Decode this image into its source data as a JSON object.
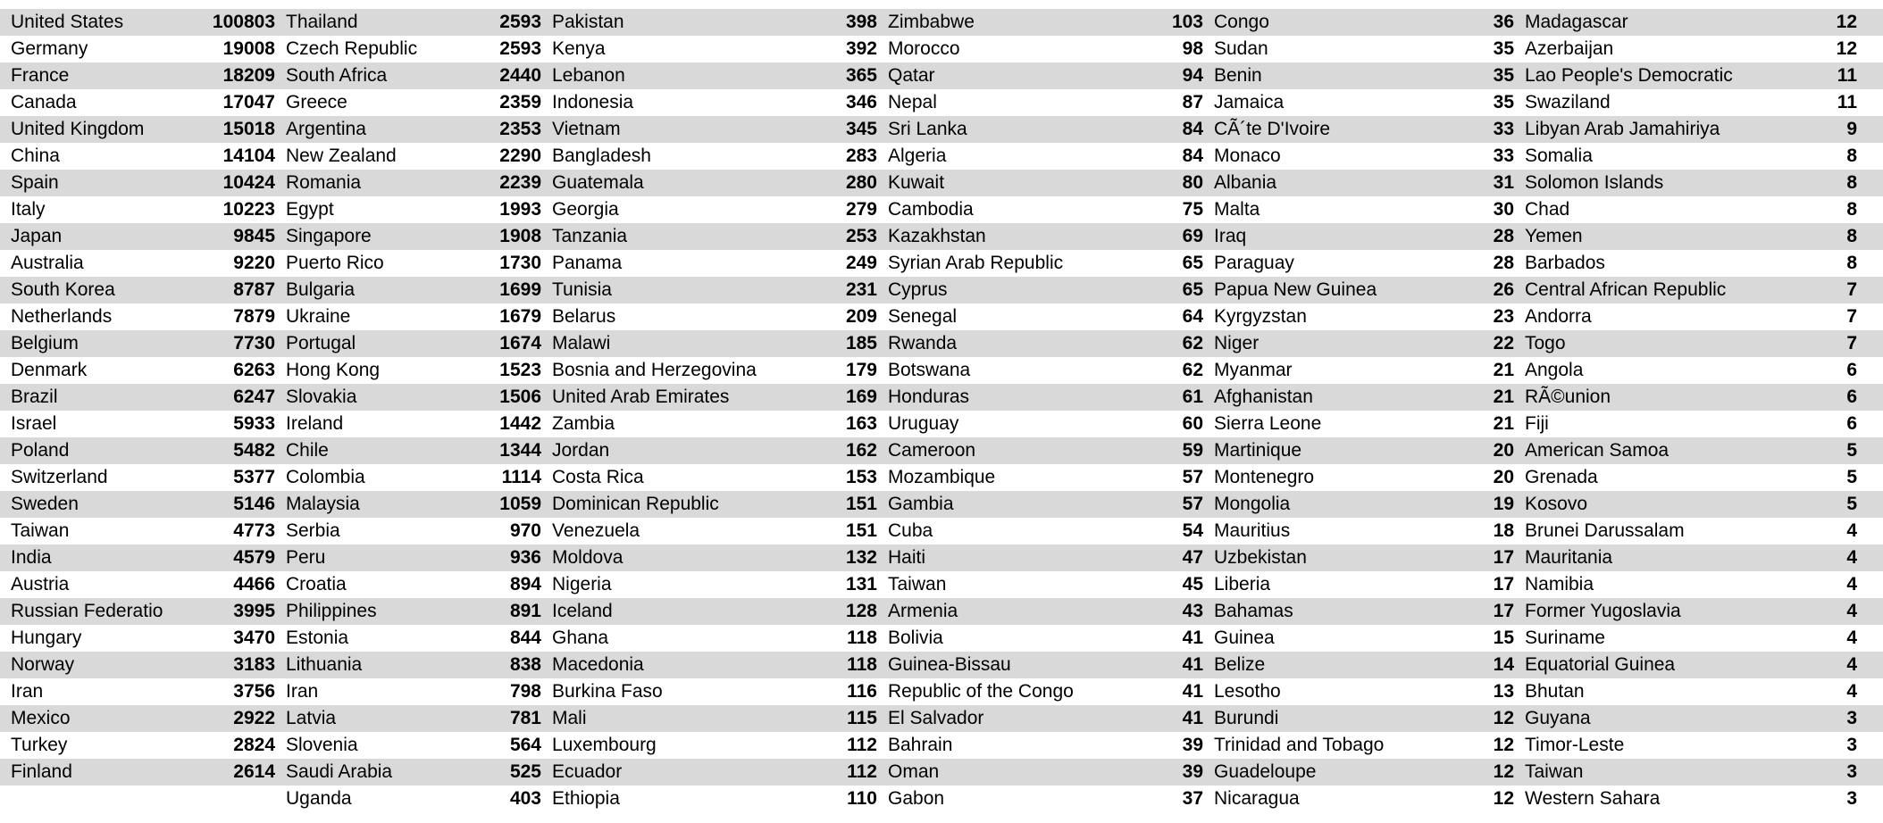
{
  "table": {
    "columns": [
      {
        "rows": [
          [
            "United States",
            "100803"
          ],
          [
            "Germany",
            "19008"
          ],
          [
            "France",
            "18209"
          ],
          [
            "Canada",
            "17047"
          ],
          [
            "United Kingdom",
            "15018"
          ],
          [
            "China",
            "14104"
          ],
          [
            "Spain",
            "10424"
          ],
          [
            "Italy",
            "10223"
          ],
          [
            "Japan",
            "9845"
          ],
          [
            "Australia",
            "9220"
          ],
          [
            "South Korea",
            "8787"
          ],
          [
            "Netherlands",
            "7879"
          ],
          [
            "Belgium",
            "7730"
          ],
          [
            "Denmark",
            "6263"
          ],
          [
            "Brazil",
            "6247"
          ],
          [
            "Israel",
            "5933"
          ],
          [
            "Poland",
            "5482"
          ],
          [
            "Switzerland",
            "5377"
          ],
          [
            "Sweden",
            "5146"
          ],
          [
            "Taiwan",
            "4773"
          ],
          [
            "India",
            "4579"
          ],
          [
            "Austria",
            "4466"
          ],
          [
            "Russian Federatio",
            "3995"
          ],
          [
            "Hungary",
            "3470"
          ],
          [
            "Norway",
            "3183"
          ],
          [
            "Iran",
            "3756"
          ],
          [
            "Mexico",
            "2922"
          ],
          [
            "Turkey",
            "2824"
          ],
          [
            "Finland",
            "2614"
          ]
        ]
      },
      {
        "rows": [
          [
            "Thailand",
            "2593"
          ],
          [
            "Czech Republic",
            "2593"
          ],
          [
            "South Africa",
            "2440"
          ],
          [
            "Greece",
            "2359"
          ],
          [
            "Argentina",
            "2353"
          ],
          [
            "New Zealand",
            "2290"
          ],
          [
            "Romania",
            "2239"
          ],
          [
            "Egypt",
            "1993"
          ],
          [
            "Singapore",
            "1908"
          ],
          [
            "Puerto Rico",
            "1730"
          ],
          [
            "Bulgaria",
            "1699"
          ],
          [
            "Ukraine",
            "1679"
          ],
          [
            "Portugal",
            "1674"
          ],
          [
            "Hong Kong",
            "1523"
          ],
          [
            "Slovakia",
            "1506"
          ],
          [
            "Ireland",
            "1442"
          ],
          [
            "Chile",
            "1344"
          ],
          [
            "Colombia",
            "1114"
          ],
          [
            "Malaysia",
            "1059"
          ],
          [
            "Serbia",
            "970"
          ],
          [
            "Peru",
            "936"
          ],
          [
            "Croatia",
            "894"
          ],
          [
            "Philippines",
            "891"
          ],
          [
            "Estonia",
            "844"
          ],
          [
            "Lithuania",
            "838"
          ],
          [
            "Iran",
            "798"
          ],
          [
            "Latvia",
            "781"
          ],
          [
            "Slovenia",
            "564"
          ],
          [
            "Saudi Arabia",
            "525"
          ],
          [
            "Uganda",
            "403"
          ]
        ]
      },
      {
        "rows": [
          [
            "Pakistan",
            "398"
          ],
          [
            "Kenya",
            "392"
          ],
          [
            "Lebanon",
            "365"
          ],
          [
            "Indonesia",
            "346"
          ],
          [
            "Vietnam",
            "345"
          ],
          [
            "Bangladesh",
            "283"
          ],
          [
            "Guatemala",
            "280"
          ],
          [
            "Georgia",
            "279"
          ],
          [
            "Tanzania",
            "253"
          ],
          [
            "Panama",
            "249"
          ],
          [
            "Tunisia",
            "231"
          ],
          [
            "Belarus",
            "209"
          ],
          [
            "Malawi",
            "185"
          ],
          [
            "Bosnia and Herzegovina",
            "179"
          ],
          [
            "United Arab Emirates",
            "169"
          ],
          [
            "Zambia",
            "163"
          ],
          [
            "Jordan",
            "162"
          ],
          [
            "Costa Rica",
            "153"
          ],
          [
            "Dominican Republic",
            "151"
          ],
          [
            "Venezuela",
            "151"
          ],
          [
            "Moldova",
            "132"
          ],
          [
            "Nigeria",
            "131"
          ],
          [
            "Iceland",
            "128"
          ],
          [
            "Ghana",
            "118"
          ],
          [
            "Macedonia",
            "118"
          ],
          [
            "Burkina Faso",
            "116"
          ],
          [
            "Mali",
            "115"
          ],
          [
            "Luxembourg",
            "112"
          ],
          [
            "Ecuador",
            "112"
          ],
          [
            "Ethiopia",
            "110"
          ]
        ]
      },
      {
        "rows": [
          [
            "Zimbabwe",
            "103"
          ],
          [
            "Morocco",
            "98"
          ],
          [
            "Qatar",
            "94"
          ],
          [
            "Nepal",
            "87"
          ],
          [
            "Sri Lanka",
            "84"
          ],
          [
            "Algeria",
            "84"
          ],
          [
            "Kuwait",
            "80"
          ],
          [
            "Cambodia",
            "75"
          ],
          [
            "Kazakhstan",
            "69"
          ],
          [
            "Syrian Arab Republic",
            "65"
          ],
          [
            "Cyprus",
            "65"
          ],
          [
            "Senegal",
            "64"
          ],
          [
            "Rwanda",
            "62"
          ],
          [
            "Botswana",
            "62"
          ],
          [
            "Honduras",
            "61"
          ],
          [
            "Uruguay",
            "60"
          ],
          [
            "Cameroon",
            "59"
          ],
          [
            "Mozambique",
            "57"
          ],
          [
            "Gambia",
            "57"
          ],
          [
            "Cuba",
            "54"
          ],
          [
            "Haiti",
            "47"
          ],
          [
            "Taiwan",
            "45"
          ],
          [
            "Armenia",
            "43"
          ],
          [
            "Bolivia",
            "41"
          ],
          [
            "Guinea-Bissau",
            "41"
          ],
          [
            "Republic of the Congo",
            "41"
          ],
          [
            "El Salvador",
            "41"
          ],
          [
            "Bahrain",
            "39"
          ],
          [
            "Oman",
            "39"
          ],
          [
            "Gabon",
            "37"
          ]
        ]
      },
      {
        "rows": [
          [
            "Congo",
            "36"
          ],
          [
            "Sudan",
            "35"
          ],
          [
            "Benin",
            "35"
          ],
          [
            "Jamaica",
            "35"
          ],
          [
            "CÃ´te D'Ivoire",
            "33"
          ],
          [
            "Monaco",
            "33"
          ],
          [
            "Albania",
            "31"
          ],
          [
            "Malta",
            "30"
          ],
          [
            "Iraq",
            "28"
          ],
          [
            "Paraguay",
            "28"
          ],
          [
            "Papua New Guinea",
            "26"
          ],
          [
            "Kyrgyzstan",
            "23"
          ],
          [
            "Niger",
            "22"
          ],
          [
            "Myanmar",
            "21"
          ],
          [
            "Afghanistan",
            "21"
          ],
          [
            "Sierra Leone",
            "21"
          ],
          [
            "Martinique",
            "20"
          ],
          [
            "Montenegro",
            "20"
          ],
          [
            "Mongolia",
            "19"
          ],
          [
            "Mauritius",
            "18"
          ],
          [
            "Uzbekistan",
            "17"
          ],
          [
            "Liberia",
            "17"
          ],
          [
            "Bahamas",
            "17"
          ],
          [
            "Guinea",
            "15"
          ],
          [
            "Belize",
            "14"
          ],
          [
            "Lesotho",
            "13"
          ],
          [
            "Burundi",
            "12"
          ],
          [
            "Trinidad and Tobago",
            "12"
          ],
          [
            "Guadeloupe",
            "12"
          ],
          [
            "Nicaragua",
            "12"
          ]
        ]
      },
      {
        "rows": [
          [
            "Madagascar",
            "12"
          ],
          [
            "Azerbaijan",
            "12"
          ],
          [
            "Lao People's Democratic",
            "11"
          ],
          [
            "Swaziland",
            "11"
          ],
          [
            "Libyan Arab Jamahiriya",
            "9"
          ],
          [
            "Somalia",
            "8"
          ],
          [
            "Solomon Islands",
            "8"
          ],
          [
            "Chad",
            "8"
          ],
          [
            "Yemen",
            "8"
          ],
          [
            "Barbados",
            "8"
          ],
          [
            "Central African Republic",
            "7"
          ],
          [
            "Andorra",
            "7"
          ],
          [
            "Togo",
            "7"
          ],
          [
            "Angola",
            "6"
          ],
          [
            "RÃ©union",
            "6"
          ],
          [
            "Fiji",
            "6"
          ],
          [
            "American Samoa",
            "5"
          ],
          [
            "Grenada",
            "5"
          ],
          [
            "Kosovo",
            "5"
          ],
          [
            "Brunei Darussalam",
            "4"
          ],
          [
            "Mauritania",
            "4"
          ],
          [
            "Namibia",
            "4"
          ],
          [
            "Former Yugoslavia",
            "4"
          ],
          [
            "Suriname",
            "4"
          ],
          [
            "Equatorial Guinea",
            "4"
          ],
          [
            "Bhutan",
            "4"
          ],
          [
            "Guyana",
            "3"
          ],
          [
            "Timor-Leste",
            "3"
          ],
          [
            "Taiwan",
            "3"
          ],
          [
            "Western Sahara",
            "3"
          ]
        ]
      }
    ],
    "shade_color": "#d9d9d9"
  }
}
